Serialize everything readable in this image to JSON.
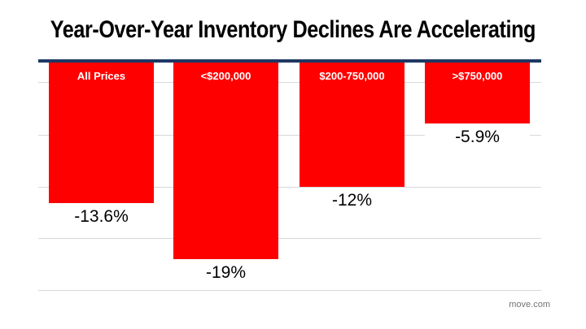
{
  "title": "Year-Over-Year Inventory Declines Are Accelerating",
  "source": "move.com",
  "colors": {
    "bar": "#fe0000",
    "axis_line": "#1f3864",
    "gridline": "#d9d9d9",
    "title_text": "#000000",
    "value_text": "#000000",
    "category_text": "#ffffff",
    "source_text": "#757575",
    "background": "#ffffff"
  },
  "chart_data": {
    "type": "bar",
    "title": "Year-Over-Year Inventory Declines Are Accelerating",
    "categories": [
      "All Prices",
      "<$200,000",
      "$200-750,000",
      ">$750,000"
    ],
    "values": [
      -13.6,
      -19,
      -12,
      -5.9
    ],
    "value_labels": [
      "-13.6%",
      "-19%",
      "-12%",
      "-5.9%"
    ],
    "xlabel": "",
    "ylabel": "",
    "ylim": [
      -22.5,
      0
    ],
    "grid": true,
    "legend_position": "none",
    "bar_orientation": "vertical-negative",
    "category_label_position": "inside-top-of-bar",
    "value_label_position": "below-bar-end"
  }
}
